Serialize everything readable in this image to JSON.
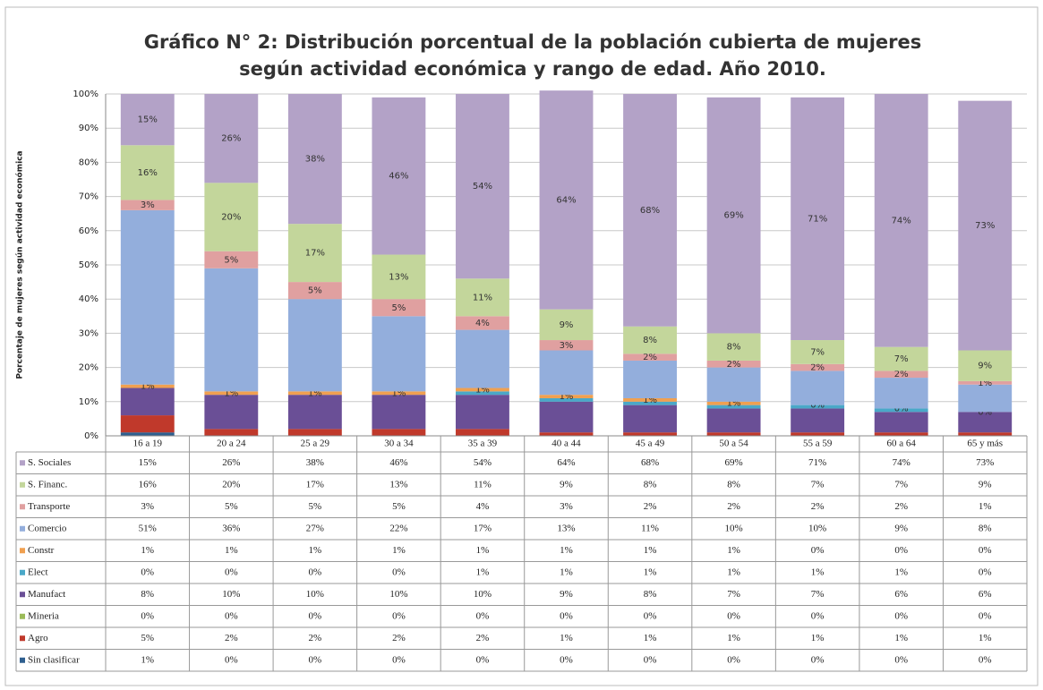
{
  "chart_data": {
    "type": "bar",
    "stacked": true,
    "title": [
      "Gráfico N° 2: Distribución porcentual de la población cubierta de mujeres",
      "según actividad económica y rango de edad. Año 2010."
    ],
    "ylabel": "Porcentaje de mujeres según actividad económica",
    "categories": [
      "16 a 19",
      "20 a 24",
      "25 a 29",
      "30 a 34",
      "35 a 39",
      "40 a 44",
      "45 a 49",
      "50  a 54",
      "55 a 59",
      "60 a 64",
      "65 y más"
    ],
    "ylim": [
      0,
      100
    ],
    "yticks": [
      {
        "value": 0,
        "label": "0%"
      },
      {
        "value": 10,
        "label": "10%"
      },
      {
        "value": 20,
        "label": "20%"
      },
      {
        "value": 30,
        "label": "30%"
      },
      {
        "value": 40,
        "label": "40%"
      },
      {
        "value": 50,
        "label": "50%"
      },
      {
        "value": 60,
        "label": "60%"
      },
      {
        "value": 70,
        "label": "70%"
      },
      {
        "value": 80,
        "label": "80%"
      },
      {
        "value": 90,
        "label": "90%"
      },
      {
        "value": 100,
        "label": "100%"
      }
    ],
    "grid": true,
    "series": [
      {
        "name": "Sin clasificar",
        "color": "#2f5f8f",
        "values": [
          1,
          0,
          0,
          0,
          0,
          0,
          0,
          0,
          0,
          0,
          0
        ],
        "value_labels": [
          "1%",
          "0%",
          "0%",
          "0%",
          "0%",
          "0%",
          "0%",
          "0%",
          "0%",
          "0%",
          "0%"
        ]
      },
      {
        "name": "Agro",
        "color": "#c0392b",
        "values": [
          5,
          2,
          2,
          2,
          2,
          1,
          1,
          1,
          1,
          1,
          1
        ],
        "value_labels": [
          "5%",
          "2%",
          "2%",
          "2%",
          "2%",
          "1%",
          "1%",
          "1%",
          "1%",
          "1%",
          "1%"
        ]
      },
      {
        "name": "Mineria",
        "color": "#9bbb59",
        "values": [
          0,
          0,
          0,
          0,
          0,
          0,
          0,
          0,
          0,
          0,
          0
        ],
        "value_labels": [
          "0%",
          "0%",
          "0%",
          "0%",
          "0%",
          "0%",
          "0%",
          "0%",
          "0%",
          "0%",
          "0%"
        ]
      },
      {
        "name": "Manufact",
        "color": "#6a4f96",
        "values": [
          8,
          10,
          10,
          10,
          10,
          9,
          8,
          7,
          7,
          6,
          6
        ],
        "value_labels": [
          "8%",
          "10%",
          "10%",
          "10%",
          "10%",
          "9%",
          "8%",
          "7%",
          "7%",
          "6%",
          "6%"
        ]
      },
      {
        "name": "Elect",
        "color": "#4aa8c8",
        "values": [
          0,
          0,
          0,
          0,
          1,
          1,
          1,
          1,
          1,
          1,
          0
        ],
        "value_labels": [
          "0%",
          "0%",
          "0%",
          "0%",
          "1%",
          "1%",
          "1%",
          "1%",
          "1%",
          "1%",
          "0%"
        ]
      },
      {
        "name": "Constr",
        "color": "#f0a050",
        "labels": true,
        "values": [
          1,
          1,
          1,
          1,
          1,
          1,
          1,
          1,
          0,
          0,
          0
        ],
        "value_labels": [
          "1%",
          "1%",
          "1%",
          "1%",
          "1%",
          "1%",
          "1%",
          "1%",
          "0%",
          "0%",
          "0%"
        ]
      },
      {
        "name": "Comercio",
        "color": "#93aedc",
        "values": [
          51,
          36,
          27,
          22,
          17,
          13,
          11,
          10,
          10,
          9,
          8
        ],
        "value_labels": [
          "51%",
          "36%",
          "27%",
          "22%",
          "17%",
          "13%",
          "11%",
          "10%",
          "10%",
          "9%",
          "8%"
        ]
      },
      {
        "name": "Transporte",
        "color": "#e0a0a0",
        "labels": true,
        "values": [
          3,
          5,
          5,
          5,
          4,
          3,
          2,
          2,
          2,
          2,
          1
        ],
        "value_labels": [
          "3%",
          "5%",
          "5%",
          "5%",
          "4%",
          "3%",
          "2%",
          "2%",
          "2%",
          "2%",
          "1%"
        ]
      },
      {
        "name": "S. Financ.",
        "color": "#c3d69b",
        "labels": true,
        "values": [
          16,
          20,
          17,
          13,
          11,
          9,
          8,
          8,
          7,
          7,
          9
        ],
        "value_labels": [
          "16%",
          "20%",
          "17%",
          "13%",
          "11%",
          "9%",
          "8%",
          "8%",
          "7%",
          "7%",
          "9%"
        ]
      },
      {
        "name": "S. Sociales",
        "color": "#b3a2c7",
        "labels": true,
        "values": [
          15,
          26,
          38,
          46,
          54,
          64,
          68,
          69,
          71,
          74,
          73
        ],
        "value_labels": [
          "15%",
          "26%",
          "38%",
          "46%",
          "54%",
          "64%",
          "68%",
          "69%",
          "71%",
          "74%",
          "73%"
        ]
      }
    ]
  }
}
